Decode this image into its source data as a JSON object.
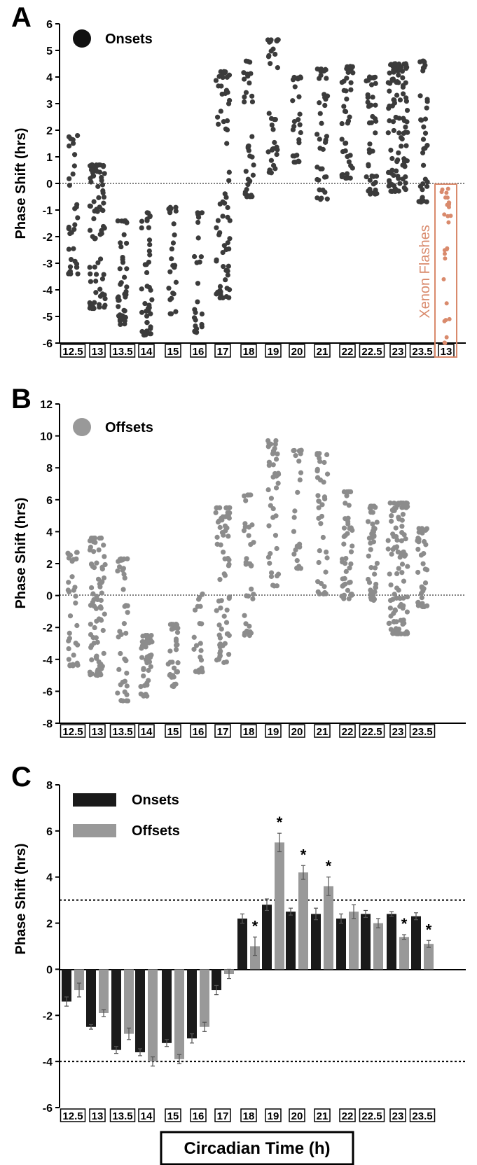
{
  "colors": {
    "onsets": "#3b3b3b",
    "offsets": "#8c8c8c",
    "xenon": "#d98a6c",
    "bar_onsets": "#1a1a1a",
    "bar_offsets": "#999999"
  },
  "footer": {
    "xlabel": "Circadian Time (h)"
  },
  "chart_data": [
    {
      "panel_letter": "A",
      "type": "scatter",
      "ylabel": "Phase Shift (hrs)",
      "ylim": [
        -6,
        6
      ],
      "yticks": [
        "6",
        "5",
        "4",
        "3",
        "2",
        "1",
        "0",
        "-1",
        "-2",
        "-3",
        "-4",
        "-5",
        "-6"
      ],
      "reference_line_y": 0,
      "legend": "Onsets",
      "categories": [
        "12.5",
        "13",
        "13.5",
        "14",
        "15",
        "16",
        "17",
        "18",
        "19",
        "20",
        "21",
        "22",
        "22.5",
        "23",
        "23.5",
        "13"
      ],
      "series_ranges": [
        {
          "n": 35,
          "min": -3.4,
          "max": 1.8
        },
        {
          "n": 80,
          "min": -4.7,
          "max": 0.7
        },
        {
          "n": 40,
          "min": -5.3,
          "max": -1.4
        },
        {
          "n": 45,
          "min": -5.7,
          "max": -1.1
        },
        {
          "n": 25,
          "min": -4.9,
          "max": -0.9
        },
        {
          "n": 25,
          "min": -5.6,
          "max": -1.1
        },
        {
          "n": 70,
          "min": -4.3,
          "max": 4.2
        },
        {
          "n": 35,
          "min": -0.5,
          "max": 4.6
        },
        {
          "n": 40,
          "min": 0.4,
          "max": 5.4
        },
        {
          "n": 25,
          "min": 0.8,
          "max": 4.0
        },
        {
          "n": 40,
          "min": -0.6,
          "max": 4.3
        },
        {
          "n": 45,
          "min": 0.2,
          "max": 4.4
        },
        {
          "n": 45,
          "min": -0.4,
          "max": 4.0
        },
        {
          "n": 110,
          "min": -0.3,
          "max": 4.5
        },
        {
          "n": 35,
          "min": -0.7,
          "max": 4.6
        },
        {
          "n": 28,
          "min": -6.0,
          "max": -0.2
        }
      ],
      "highlight": {
        "index": 15,
        "label": "Xenon Flashes"
      }
    },
    {
      "panel_letter": "B",
      "type": "scatter",
      "ylabel": "Phase Shift (hrs)",
      "ylim": [
        -8,
        12
      ],
      "yticks": [
        "12",
        "10",
        "8",
        "6",
        "4",
        "2",
        "0",
        "-2",
        "-4",
        "-6",
        "-8"
      ],
      "reference_line_y": 0,
      "legend": "Offsets",
      "categories": [
        "12.5",
        "13",
        "13.5",
        "14",
        "15",
        "16",
        "17",
        "18",
        "19",
        "20",
        "21",
        "22",
        "22.5",
        "23",
        "23.5"
      ],
      "series_ranges": [
        {
          "n": 35,
          "min": -4.4,
          "max": 2.7
        },
        {
          "n": 80,
          "min": -5.0,
          "max": 3.6
        },
        {
          "n": 40,
          "min": -6.6,
          "max": 2.3
        },
        {
          "n": 45,
          "min": -6.3,
          "max": -2.5
        },
        {
          "n": 35,
          "min": -5.7,
          "max": -1.8
        },
        {
          "n": 25,
          "min": -4.8,
          "max": 0.1
        },
        {
          "n": 70,
          "min": -4.2,
          "max": 5.5
        },
        {
          "n": 35,
          "min": -2.5,
          "max": 6.3
        },
        {
          "n": 40,
          "min": 0.6,
          "max": 9.7
        },
        {
          "n": 25,
          "min": 1.7,
          "max": 9.1
        },
        {
          "n": 40,
          "min": 0.1,
          "max": 8.9
        },
        {
          "n": 45,
          "min": -0.2,
          "max": 6.5
        },
        {
          "n": 45,
          "min": -0.3,
          "max": 5.6
        },
        {
          "n": 110,
          "min": -2.4,
          "max": 5.8
        },
        {
          "n": 35,
          "min": -0.7,
          "max": 4.2
        }
      ]
    },
    {
      "panel_letter": "C",
      "type": "bar",
      "ylabel": "Phase Shift (hrs)",
      "ylim": [
        -6,
        8
      ],
      "yticks": [
        "8",
        "6",
        "4",
        "2",
        "0",
        "-2",
        "-4",
        "-6"
      ],
      "reference_lines_y": [
        3,
        -4
      ],
      "categories": [
        "12.5",
        "13",
        "13.5",
        "14",
        "15",
        "16",
        "17",
        "18",
        "19",
        "20",
        "21",
        "22",
        "22.5",
        "23",
        "23.5"
      ],
      "series": [
        {
          "name": "Onsets",
          "values": [
            -1.4,
            -2.5,
            -3.5,
            -3.6,
            -3.2,
            -3.0,
            -0.9,
            2.2,
            2.8,
            2.5,
            2.4,
            2.2,
            2.4,
            2.4,
            2.3
          ],
          "errors": [
            0.2,
            0.1,
            0.15,
            0.15,
            0.15,
            0.2,
            0.2,
            0.2,
            0.25,
            0.15,
            0.25,
            0.2,
            0.15,
            0.1,
            0.15
          ]
        },
        {
          "name": "Offsets",
          "values": [
            -0.9,
            -1.9,
            -2.8,
            -4.0,
            -3.9,
            -2.5,
            -0.2,
            1.0,
            5.5,
            4.2,
            3.6,
            2.5,
            2.0,
            1.4,
            1.1
          ],
          "errors": [
            0.3,
            0.15,
            0.25,
            0.2,
            0.2,
            0.2,
            0.2,
            0.4,
            0.4,
            0.3,
            0.4,
            0.3,
            0.2,
            0.1,
            0.15
          ]
        }
      ],
      "significance": [
        "",
        "",
        "",
        "",
        "",
        "",
        "",
        "*",
        "*",
        "*",
        "*",
        "",
        "",
        "*",
        "*"
      ]
    }
  ]
}
